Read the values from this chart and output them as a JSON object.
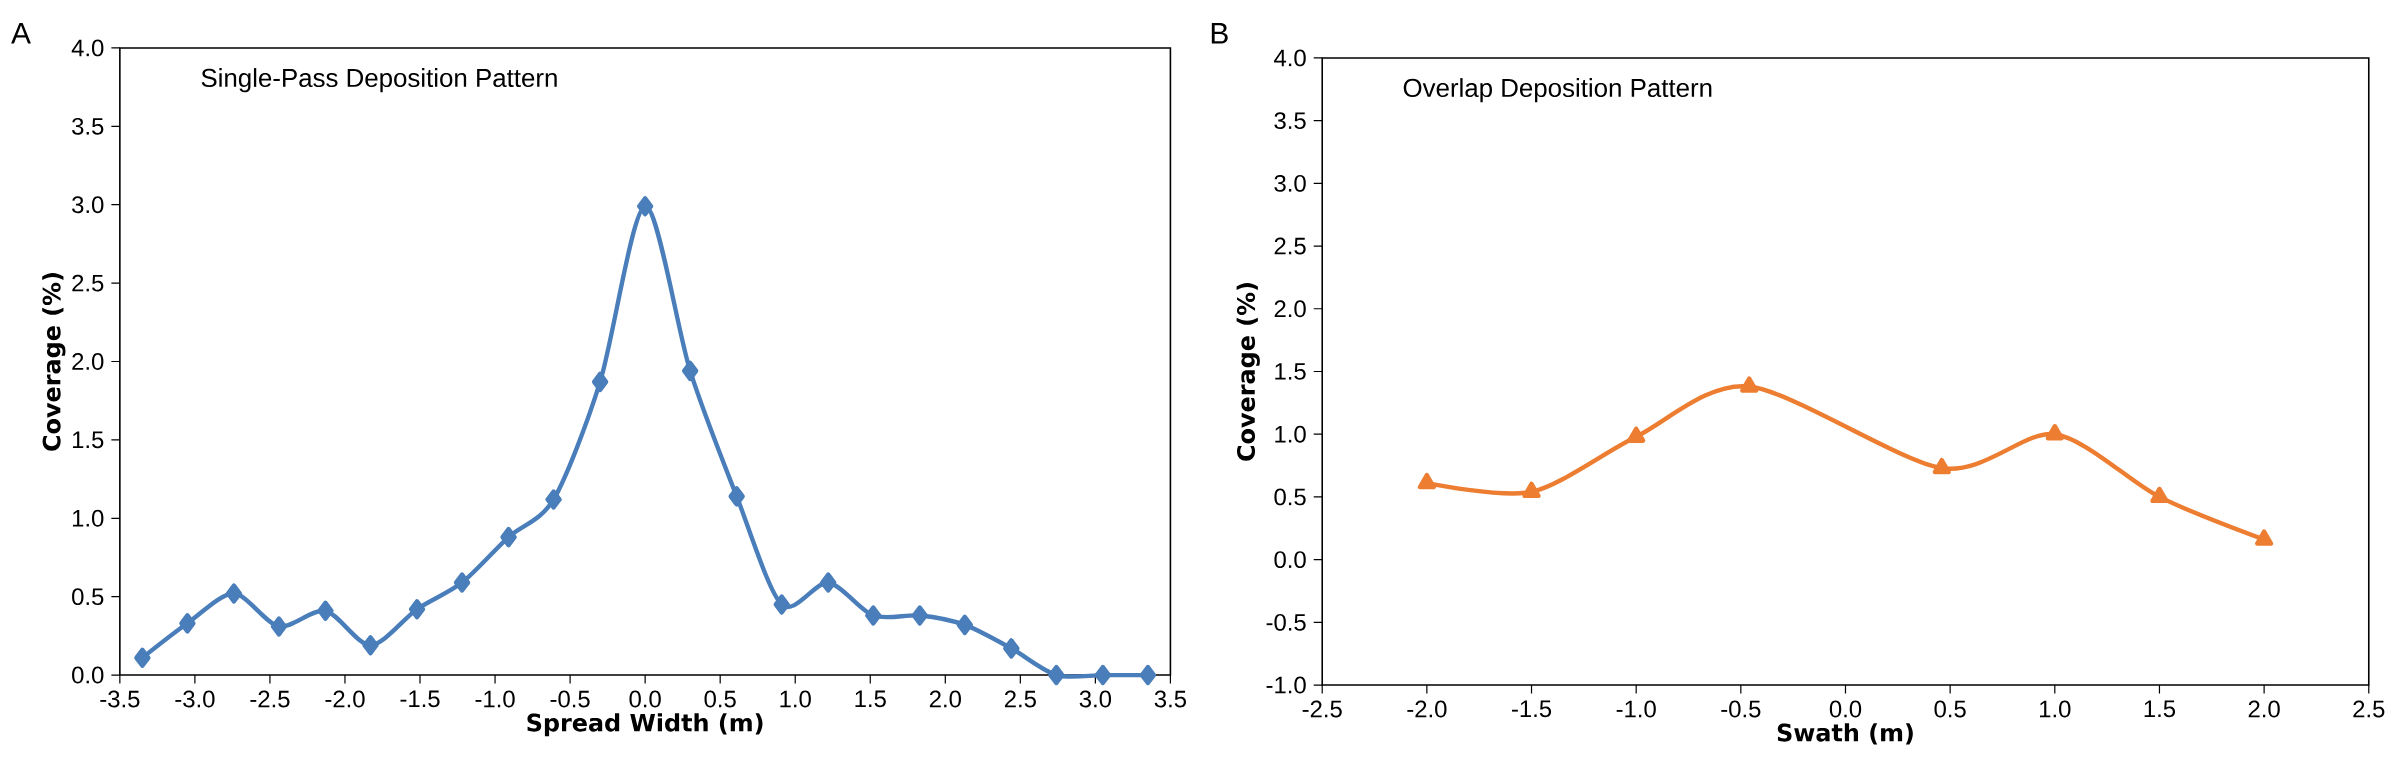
{
  "chart_data": [
    {
      "type": "line",
      "title": "Single-Pass Deposition Pattern",
      "xlabel": "Spread Width (m)",
      "ylabel": "Coverage (%)",
      "annotations": [
        "A"
      ],
      "marker": "diamond",
      "x": [
        -3.35,
        -3.05,
        -2.74,
        -2.44,
        -2.13,
        -1.83,
        -1.52,
        -1.22,
        -0.91,
        -0.61,
        -0.3,
        0,
        0.3,
        0.61,
        0.91,
        1.22,
        1.52,
        1.83,
        2.13,
        2.44,
        2.74,
        3.05,
        3.35
      ],
      "series": [
        {
          "color": "#4a7ebb",
          "values": [
            0.11,
            0.33,
            0.52,
            0.31,
            0.41,
            0.19,
            0.42,
            0.59,
            0.88,
            1.12,
            1.87,
            2.99,
            1.94,
            1.14,
            0.45,
            0.59,
            0.38,
            0.38,
            0.32,
            0.17,
            0.0,
            0.0,
            0.0
          ]
        }
      ],
      "xlim": [
        -3.5,
        3.5
      ],
      "ylim": [
        0,
        4
      ],
      "xticks": [
        -3.5,
        {
          "value": -3,
          "label": "-3.0"
        },
        -2.5,
        {
          "value": -2,
          "label": "-2.0"
        },
        -1.5,
        {
          "value": -1,
          "label": "-1.0"
        },
        -0.5,
        {
          "value": 0,
          "label": "0.0"
        },
        0.5,
        {
          "value": 1,
          "label": "1.0"
        },
        1.5,
        {
          "value": 2,
          "label": "2.0"
        },
        2.5,
        {
          "value": 3,
          "label": "3.0"
        },
        3.5
      ],
      "yticks": [
        {
          "value": 0,
          "label": "0.0"
        },
        0.5,
        {
          "value": 1,
          "label": "1.0"
        },
        1.5,
        {
          "value": 2,
          "label": "2.0"
        },
        2.5,
        {
          "value": 3,
          "label": "3.0"
        },
        3.5,
        {
          "value": 4,
          "label": "4.0"
        }
      ]
    },
    {
      "type": "line",
      "title": "Overlap Deposition Pattern",
      "xlabel": "Swath (m)",
      "ylabel": "Coverage (%)",
      "annotations": [
        "B"
      ],
      "marker": "triangle",
      "x": [
        -2,
        -1.5,
        -1,
        -0.46,
        0.46,
        1,
        1.5,
        2
      ],
      "series": [
        {
          "color": "#ed7d31",
          "values": [
            0.61,
            0.54,
            0.98,
            1.38,
            0.73,
            1.0,
            0.5,
            0.16
          ]
        }
      ],
      "xlim": [
        -2.5,
        2.5
      ],
      "ylim": [
        -1,
        4
      ],
      "xticks": [
        -2.5,
        {
          "value": -2,
          "label": "-2.0"
        },
        -1.5,
        {
          "value": -1,
          "label": "-1.0"
        },
        -0.5,
        {
          "value": 0,
          "label": "0.0"
        },
        0.5,
        {
          "value": 1,
          "label": "1.0"
        },
        1.5,
        {
          "value": 2,
          "label": "2.0"
        },
        2.5
      ],
      "yticks": [
        {
          "value": -1,
          "label": "-1.0"
        },
        -0.5,
        {
          "value": 0,
          "label": "0.0"
        },
        0.5,
        {
          "value": 1,
          "label": "1.0"
        },
        1.5,
        {
          "value": 2,
          "label": "2.0"
        },
        2.5,
        {
          "value": 3,
          "label": "3.0"
        },
        3.5,
        {
          "value": 4,
          "label": "4.0"
        }
      ]
    }
  ]
}
